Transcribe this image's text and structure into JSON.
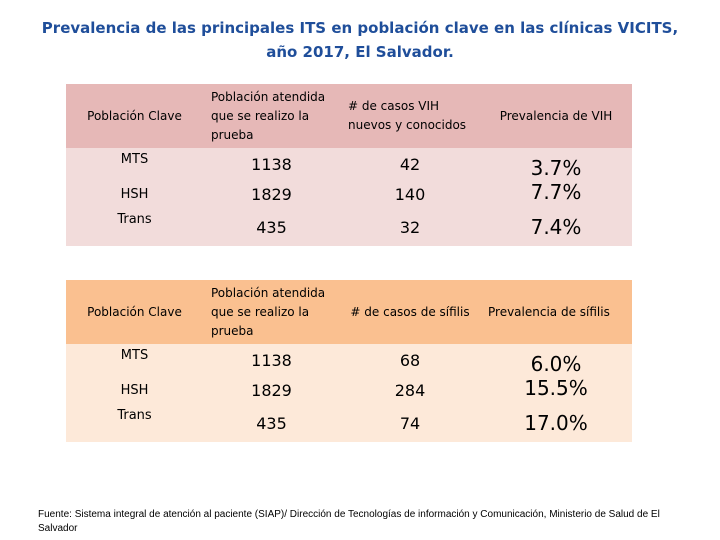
{
  "title": {
    "line1": "Prevalencia de las principales ITS en población clave en las clínicas VICITS,",
    "line2": "año 2017, El Salvador."
  },
  "hiv_table": {
    "headers": [
      "Población Clave",
      "Población atendida que se realizo la prueba",
      "# de casos VIH nuevos y conocidos",
      "Prevalencia de VIH"
    ],
    "rows": [
      {
        "group": "MTS",
        "tested": "1138",
        "cases": "42",
        "prevalence": "3.7%"
      },
      {
        "group": "HSH",
        "tested": "1829",
        "cases": "140",
        "prevalence": "7.7%"
      },
      {
        "group": "Trans",
        "tested": "435",
        "cases": "32",
        "prevalence": "7.4%"
      }
    ],
    "colors": {
      "header": "#e6b8b7",
      "body": "#f2dcdb"
    }
  },
  "syphilis_table": {
    "headers": [
      "Población Clave",
      "Población atendida que se realizo la prueba",
      "# de casos de sífilis",
      "Prevalencia de sífilis"
    ],
    "rows": [
      {
        "group": "MTS",
        "tested": "1138",
        "cases": "68",
        "prevalence": "6.0%"
      },
      {
        "group": "HSH",
        "tested": "1829",
        "cases": "284",
        "prevalence": "15.5%"
      },
      {
        "group": "Trans",
        "tested": "435",
        "cases": "74",
        "prevalence": "17.0%"
      }
    ],
    "colors": {
      "header": "#fac090",
      "body": "#fde9d9"
    }
  },
  "source": "Fuente: Sistema integral de atención al paciente (SIAP)/ Dirección de Tecnologías de información y Comunicación, Ministerio de Salud de El Salvador",
  "colors": {
    "title": "#1f4e9a"
  }
}
